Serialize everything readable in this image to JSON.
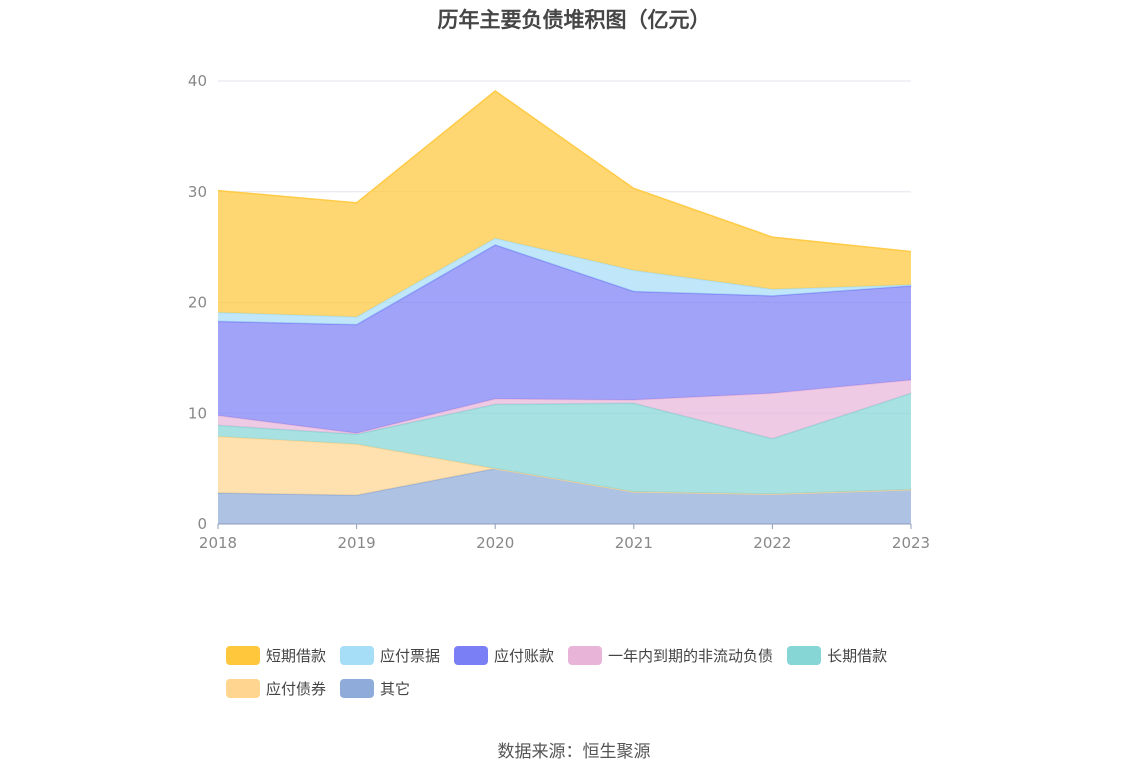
{
  "chart_data": {
    "type": "area",
    "stacked": true,
    "title": "历年主要负债堆积图（亿元）",
    "x": [
      "2018",
      "2019",
      "2020",
      "2021",
      "2022",
      "2023"
    ],
    "ylim": [
      0,
      40
    ],
    "yticks": [
      0,
      10,
      20,
      30,
      40
    ],
    "grid": true,
    "legend_position": "bottom",
    "series": [
      {
        "name": "其它",
        "color": "#8fabd9",
        "values": [
          2.8,
          2.6,
          5.0,
          2.9,
          2.7,
          3.1
        ]
      },
      {
        "name": "应付债券",
        "color": "#ffd590",
        "values": [
          5.1,
          4.6,
          0.0,
          0.0,
          0.0,
          0.0
        ]
      },
      {
        "name": "长期借款",
        "color": "#86d6d6",
        "values": [
          1.0,
          0.9,
          5.8,
          8.0,
          5.0,
          8.7
        ]
      },
      {
        "name": "一年内到期的非流动负债",
        "color": "#e8b5d9",
        "values": [
          0.9,
          0.1,
          0.5,
          0.3,
          4.1,
          1.2
        ]
      },
      {
        "name": "应付账款",
        "color": "#7b7ff5",
        "values": [
          8.5,
          9.8,
          13.9,
          9.8,
          8.8,
          8.5
        ]
      },
      {
        "name": "应付票据",
        "color": "#a6def7",
        "values": [
          0.8,
          0.7,
          0.6,
          1.9,
          0.6,
          0.1
        ]
      },
      {
        "name": "短期借款",
        "color": "#ffc83c",
        "values": [
          11.0,
          10.3,
          13.3,
          7.4,
          4.7,
          3.0
        ]
      }
    ]
  },
  "legend_order": [
    [
      "短期借款",
      "应付票据",
      "应付账款",
      "一年内到期的非流动负债",
      "长期借款"
    ],
    [
      "应付债券",
      "其它"
    ]
  ],
  "source": "数据来源：恒生聚源"
}
